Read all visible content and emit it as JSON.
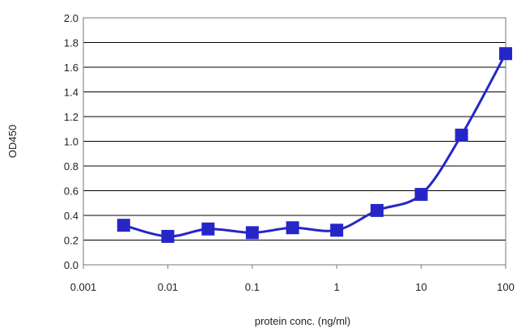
{
  "chart_data": {
    "type": "line",
    "xscale": "log",
    "xlabel": "protein conc. (ng/ml)",
    "ylabel": "OD450",
    "xlim": [
      0.001,
      100
    ],
    "ylim": [
      0,
      2.0
    ],
    "xticks": [
      "0.001",
      "0.01",
      "0.1",
      "1",
      "10",
      "100"
    ],
    "yticks": [
      "0.0",
      "0.2",
      "0.4",
      "0.6",
      "0.8",
      "1.0",
      "1.2",
      "1.4",
      "1.6",
      "1.8",
      "2.0"
    ],
    "grid": "horizontal",
    "legend": "none",
    "series": [
      {
        "color": "#2626c8",
        "marker": "square",
        "x": [
          0.003,
          0.01,
          0.03,
          0.1,
          0.3,
          1,
          3,
          10,
          30,
          100
        ],
        "y": [
          0.32,
          0.23,
          0.29,
          0.26,
          0.3,
          0.28,
          0.44,
          0.57,
          1.05,
          1.71
        ]
      }
    ]
  }
}
